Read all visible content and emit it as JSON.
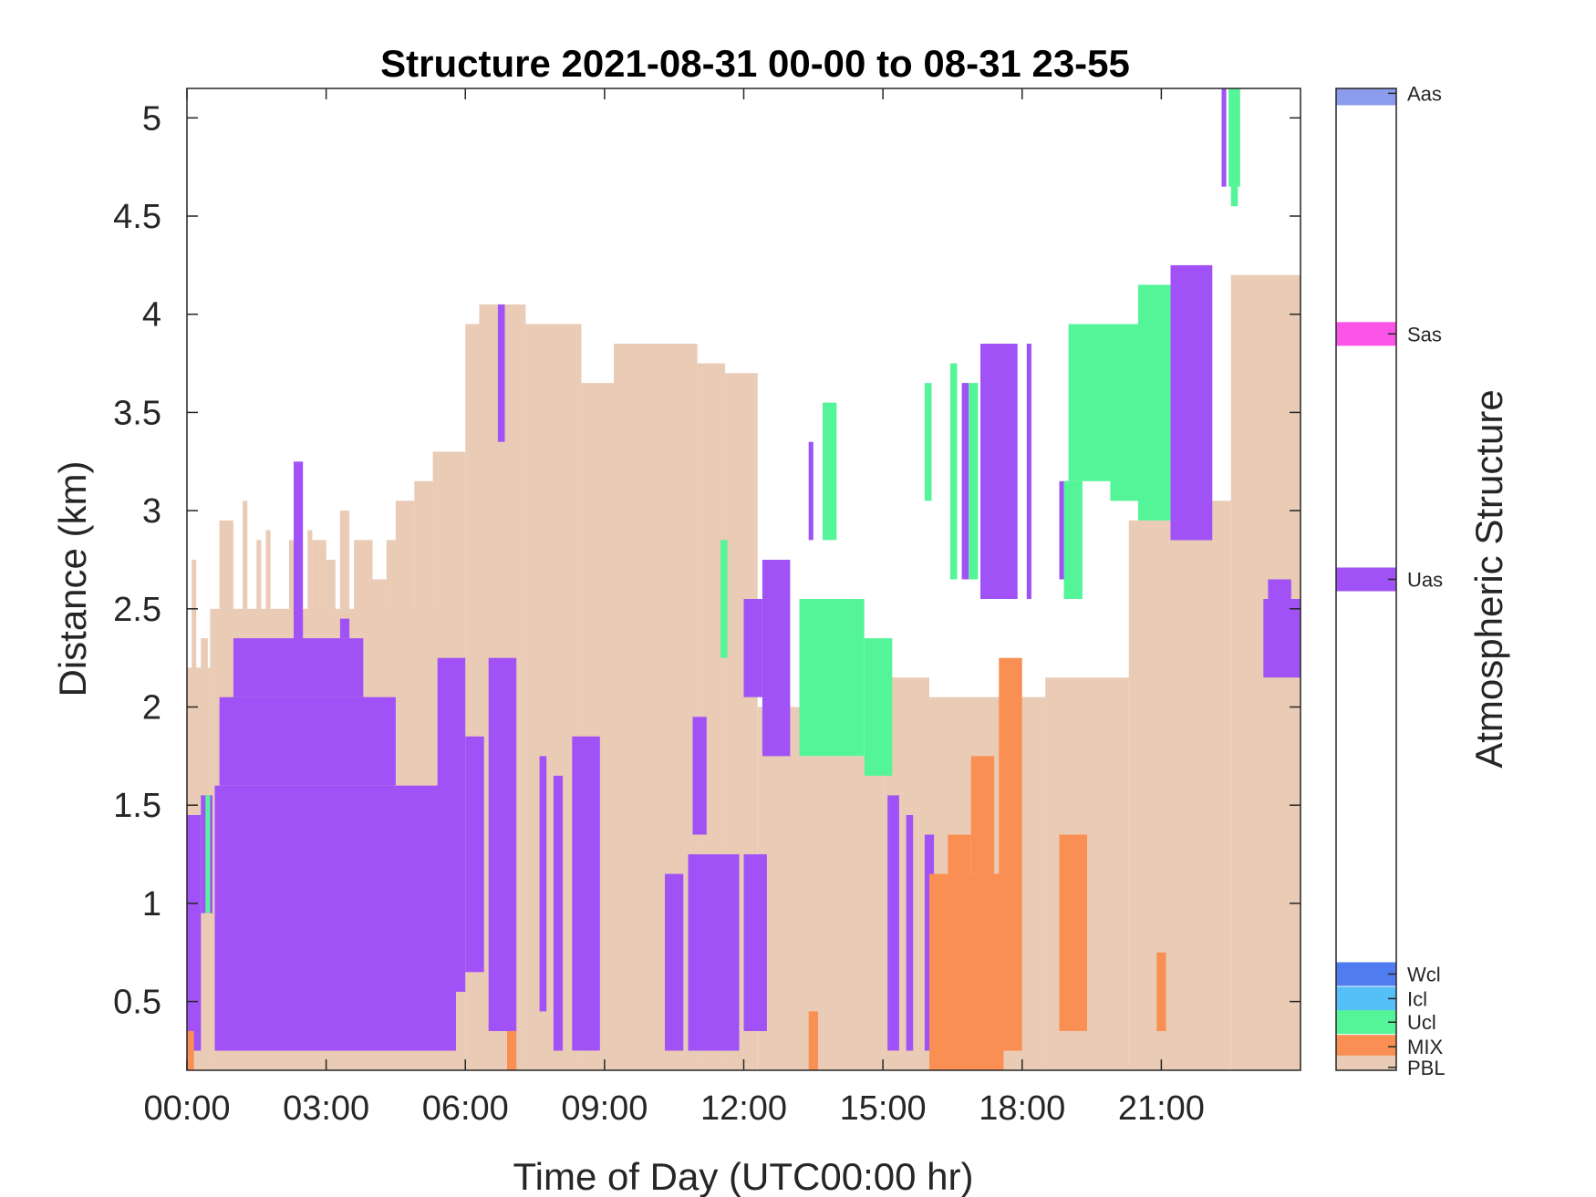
{
  "chart_data": {
    "type": "heatmap",
    "title": "Structure 2021-08-31 00-00 to 08-31 23-55",
    "xlabel": "Time of Day (UTC00:00 hr)",
    "ylabel": "Distance (km)",
    "colorbar_label": "Atmospheric Structure",
    "xlim": [
      0,
      24
    ],
    "ylim": [
      0.15,
      5.15
    ],
    "x_ticks": [
      {
        "value": 0,
        "label": "00:00"
      },
      {
        "value": 3,
        "label": "03:00"
      },
      {
        "value": 6,
        "label": "06:00"
      },
      {
        "value": 9,
        "label": "09:00"
      },
      {
        "value": 12,
        "label": "12:00"
      },
      {
        "value": 15,
        "label": "15:00"
      },
      {
        "value": 18,
        "label": "18:00"
      },
      {
        "value": 21,
        "label": "21:00"
      }
    ],
    "y_ticks": [
      {
        "value": 0.5,
        "label": "0.5"
      },
      {
        "value": 1,
        "label": "1"
      },
      {
        "value": 1.5,
        "label": "1.5"
      },
      {
        "value": 2,
        "label": "2"
      },
      {
        "value": 2.5,
        "label": "2.5"
      },
      {
        "value": 3,
        "label": "3"
      },
      {
        "value": 3.5,
        "label": "3.5"
      },
      {
        "value": 4,
        "label": "4"
      },
      {
        "value": 4.5,
        "label": "4.5"
      },
      {
        "value": 5,
        "label": "5"
      }
    ],
    "classes": [
      {
        "name": "PBL",
        "color": "#EACBB5"
      },
      {
        "name": "MIX",
        "color": "#F98F52"
      },
      {
        "name": "Ucl",
        "color": "#54F598"
      },
      {
        "name": "Icl",
        "color": "#55BFF7"
      },
      {
        "name": "Wcl",
        "color": "#4F7DF0"
      },
      {
        "name": "Uas",
        "color": "#A052F7"
      },
      {
        "name": "Sas",
        "color": "#FA55E7"
      },
      {
        "name": "Aas",
        "color": "#8C9CEC"
      }
    ],
    "colorbar_entries": [
      {
        "name": "Aas",
        "color": "#8C9CEC",
        "level": 0.995
      },
      {
        "name": "Sas",
        "color": "#FA55E7",
        "level": 0.75
      },
      {
        "name": "Uas",
        "color": "#A052F7",
        "level": 0.5
      },
      {
        "name": "Wcl",
        "color": "#4F7DF0",
        "level": 0.098
      },
      {
        "name": "Icl",
        "color": "#55BFF7",
        "level": 0.073
      },
      {
        "name": "Ucl",
        "color": "#54F598",
        "level": 0.049
      },
      {
        "name": "MIX",
        "color": "#F98F52",
        "level": 0.024
      },
      {
        "name": "PBL",
        "color": "#EACBB5",
        "level": 0.003
      }
    ],
    "regions": [
      {
        "class": "PBL",
        "x0": 0.0,
        "x1": 0.5,
        "y0": 0.15,
        "y1": 2.2
      },
      {
        "class": "PBL",
        "x0": 0.1,
        "x1": 0.2,
        "y0": 0.15,
        "y1": 2.75
      },
      {
        "class": "PBL",
        "x0": 0.3,
        "x1": 0.45,
        "y0": 0.15,
        "y1": 2.35
      },
      {
        "class": "PBL",
        "x0": 0.5,
        "x1": 6.0,
        "y0": 0.15,
        "y1": 2.5
      },
      {
        "class": "PBL",
        "x0": 0.7,
        "x1": 1.0,
        "y0": 0.15,
        "y1": 2.95
      },
      {
        "class": "PBL",
        "x0": 1.2,
        "x1": 1.3,
        "y0": 0.15,
        "y1": 3.05
      },
      {
        "class": "PBL",
        "x0": 1.5,
        "x1": 1.6,
        "y0": 0.15,
        "y1": 2.85
      },
      {
        "class": "PBL",
        "x0": 1.7,
        "x1": 1.8,
        "y0": 0.15,
        "y1": 2.9
      },
      {
        "class": "PBL",
        "x0": 2.2,
        "x1": 2.4,
        "y0": 0.15,
        "y1": 2.85
      },
      {
        "class": "PBL",
        "x0": 2.6,
        "x1": 2.7,
        "y0": 0.15,
        "y1": 2.9
      },
      {
        "class": "PBL",
        "x0": 2.7,
        "x1": 3.0,
        "y0": 0.15,
        "y1": 2.85
      },
      {
        "class": "PBL",
        "x0": 3.0,
        "x1": 3.2,
        "y0": 0.15,
        "y1": 2.75
      },
      {
        "class": "PBL",
        "x0": 3.3,
        "x1": 3.5,
        "y0": 0.15,
        "y1": 3.0
      },
      {
        "class": "PBL",
        "x0": 3.6,
        "x1": 4.0,
        "y0": 0.15,
        "y1": 2.85
      },
      {
        "class": "PBL",
        "x0": 4.0,
        "x1": 4.3,
        "y0": 0.15,
        "y1": 2.65
      },
      {
        "class": "PBL",
        "x0": 4.3,
        "x1": 4.5,
        "y0": 0.15,
        "y1": 2.85
      },
      {
        "class": "PBL",
        "x0": 4.5,
        "x1": 4.9,
        "y0": 0.15,
        "y1": 3.05
      },
      {
        "class": "PBL",
        "x0": 4.9,
        "x1": 5.3,
        "y0": 0.15,
        "y1": 3.15
      },
      {
        "class": "PBL",
        "x0": 5.3,
        "x1": 6.0,
        "y0": 0.15,
        "y1": 3.3
      },
      {
        "class": "PBL",
        "x0": 6.0,
        "x1": 6.3,
        "y0": 0.15,
        "y1": 3.95
      },
      {
        "class": "PBL",
        "x0": 6.3,
        "x1": 7.3,
        "y0": 0.15,
        "y1": 4.05
      },
      {
        "class": "PBL",
        "x0": 7.3,
        "x1": 8.5,
        "y0": 0.15,
        "y1": 3.95
      },
      {
        "class": "PBL",
        "x0": 8.5,
        "x1": 9.2,
        "y0": 0.15,
        "y1": 3.65
      },
      {
        "class": "PBL",
        "x0": 9.2,
        "x1": 11.0,
        "y0": 0.15,
        "y1": 3.85
      },
      {
        "class": "PBL",
        "x0": 11.0,
        "x1": 11.6,
        "y0": 0.15,
        "y1": 3.75
      },
      {
        "class": "PBL",
        "x0": 11.6,
        "x1": 12.3,
        "y0": 0.15,
        "y1": 3.7
      },
      {
        "class": "PBL",
        "x0": 12.3,
        "x1": 13.2,
        "y0": 0.15,
        "y1": 2.0
      },
      {
        "class": "PBL",
        "x0": 13.2,
        "x1": 15.0,
        "y0": 0.15,
        "y1": 1.75
      },
      {
        "class": "PBL",
        "x0": 15.0,
        "x1": 16.0,
        "y0": 0.15,
        "y1": 2.15
      },
      {
        "class": "PBL",
        "x0": 16.0,
        "x1": 18.5,
        "y0": 0.15,
        "y1": 2.05
      },
      {
        "class": "PBL",
        "x0": 18.5,
        "x1": 20.3,
        "y0": 0.15,
        "y1": 2.15
      },
      {
        "class": "PBL",
        "x0": 20.3,
        "x1": 21.2,
        "y0": 0.15,
        "y1": 2.95
      },
      {
        "class": "PBL",
        "x0": 21.2,
        "x1": 22.5,
        "y0": 0.15,
        "y1": 3.05
      },
      {
        "class": "PBL",
        "x0": 22.5,
        "x1": 24.0,
        "y0": 0.15,
        "y1": 4.2
      },
      {
        "class": "Uas",
        "x0": 0.0,
        "x1": 0.3,
        "y0": 0.25,
        "y1": 1.45
      },
      {
        "class": "Uas",
        "x0": 0.3,
        "x1": 0.55,
        "y0": 0.95,
        "y1": 1.55
      },
      {
        "class": "Uas",
        "x0": 0.6,
        "x1": 5.8,
        "y0": 0.25,
        "y1": 1.6
      },
      {
        "class": "Uas",
        "x0": 0.7,
        "x1": 4.5,
        "y0": 1.6,
        "y1": 2.05
      },
      {
        "class": "Uas",
        "x0": 1.0,
        "x1": 3.8,
        "y0": 2.05,
        "y1": 2.35
      },
      {
        "class": "Uas",
        "x0": 2.3,
        "x1": 2.5,
        "y0": 2.35,
        "y1": 3.25
      },
      {
        "class": "Uas",
        "x0": 3.3,
        "x1": 3.5,
        "y0": 2.35,
        "y1": 2.45
      },
      {
        "class": "Uas",
        "x0": 5.4,
        "x1": 6.0,
        "y0": 0.55,
        "y1": 2.25
      },
      {
        "class": "Uas",
        "x0": 6.0,
        "x1": 6.4,
        "y0": 0.65,
        "y1": 1.85
      },
      {
        "class": "Uas",
        "x0": 6.5,
        "x1": 7.1,
        "y0": 0.35,
        "y1": 2.25
      },
      {
        "class": "Uas",
        "x0": 6.7,
        "x1": 6.85,
        "y0": 3.35,
        "y1": 4.05
      },
      {
        "class": "Uas",
        "x0": 7.6,
        "x1": 7.75,
        "y0": 0.45,
        "y1": 1.75
      },
      {
        "class": "Uas",
        "x0": 7.9,
        "x1": 8.1,
        "y0": 0.25,
        "y1": 1.65
      },
      {
        "class": "Uas",
        "x0": 8.3,
        "x1": 8.9,
        "y0": 0.25,
        "y1": 1.85
      },
      {
        "class": "Uas",
        "x0": 10.3,
        "x1": 10.7,
        "y0": 0.25,
        "y1": 1.15
      },
      {
        "class": "Uas",
        "x0": 10.8,
        "x1": 11.9,
        "y0": 0.25,
        "y1": 1.25
      },
      {
        "class": "Uas",
        "x0": 10.9,
        "x1": 11.2,
        "y0": 1.35,
        "y1": 1.95
      },
      {
        "class": "Uas",
        "x0": 12.0,
        "x1": 12.5,
        "y0": 0.35,
        "y1": 1.25
      },
      {
        "class": "Uas",
        "x0": 12.0,
        "x1": 12.4,
        "y0": 2.05,
        "y1": 2.55
      },
      {
        "class": "Uas",
        "x0": 12.4,
        "x1": 13.0,
        "y0": 1.75,
        "y1": 2.75
      },
      {
        "class": "Uas",
        "x0": 13.4,
        "x1": 13.5,
        "y0": 2.85,
        "y1": 3.35
      },
      {
        "class": "Uas",
        "x0": 15.1,
        "x1": 15.35,
        "y0": 0.25,
        "y1": 1.55
      },
      {
        "class": "Uas",
        "x0": 15.5,
        "x1": 15.65,
        "y0": 0.25,
        "y1": 1.45
      },
      {
        "class": "Uas",
        "x0": 15.9,
        "x1": 16.1,
        "y0": 0.25,
        "y1": 1.35
      },
      {
        "class": "Uas",
        "x0": 16.7,
        "x1": 16.85,
        "y0": 2.65,
        "y1": 3.65
      },
      {
        "class": "Uas",
        "x0": 17.1,
        "x1": 17.9,
        "y0": 2.55,
        "y1": 3.85
      },
      {
        "class": "Uas",
        "x0": 18.1,
        "x1": 18.2,
        "y0": 2.55,
        "y1": 3.85
      },
      {
        "class": "Uas",
        "x0": 18.8,
        "x1": 19.0,
        "y0": 2.65,
        "y1": 3.15
      },
      {
        "class": "Uas",
        "x0": 21.2,
        "x1": 22.1,
        "y0": 2.85,
        "y1": 4.25
      },
      {
        "class": "Uas",
        "x0": 22.3,
        "x1": 22.4,
        "y0": 4.65,
        "y1": 5.15
      },
      {
        "class": "Uas",
        "x0": 23.2,
        "x1": 24.0,
        "y0": 2.15,
        "y1": 2.55
      },
      {
        "class": "Uas",
        "x0": 23.3,
        "x1": 23.8,
        "y0": 2.55,
        "y1": 2.65
      },
      {
        "class": "Ucl",
        "x0": 0.4,
        "x1": 0.5,
        "y0": 0.95,
        "y1": 1.55
      },
      {
        "class": "Ucl",
        "x0": 11.5,
        "x1": 11.65,
        "y0": 2.25,
        "y1": 2.85
      },
      {
        "class": "Ucl",
        "x0": 13.2,
        "x1": 14.6,
        "y0": 1.75,
        "y1": 2.55
      },
      {
        "class": "Ucl",
        "x0": 14.6,
        "x1": 15.2,
        "y0": 1.65,
        "y1": 2.35
      },
      {
        "class": "Ucl",
        "x0": 13.7,
        "x1": 14.0,
        "y0": 2.85,
        "y1": 3.55
      },
      {
        "class": "Ucl",
        "x0": 15.9,
        "x1": 16.05,
        "y0": 3.05,
        "y1": 3.65
      },
      {
        "class": "Ucl",
        "x0": 16.45,
        "x1": 16.6,
        "y0": 2.65,
        "y1": 3.75
      },
      {
        "class": "Ucl",
        "x0": 16.85,
        "x1": 17.05,
        "y0": 2.65,
        "y1": 3.65
      },
      {
        "class": "Ucl",
        "x0": 18.9,
        "x1": 19.3,
        "y0": 2.55,
        "y1": 3.15
      },
      {
        "class": "Ucl",
        "x0": 19.0,
        "x1": 21.2,
        "y0": 3.15,
        "y1": 3.95
      },
      {
        "class": "Ucl",
        "x0": 19.9,
        "x1": 21.2,
        "y0": 3.05,
        "y1": 3.25
      },
      {
        "class": "Ucl",
        "x0": 20.5,
        "x1": 21.2,
        "y0": 2.95,
        "y1": 4.15
      },
      {
        "class": "Ucl",
        "x0": 22.45,
        "x1": 22.7,
        "y0": 4.65,
        "y1": 5.15
      },
      {
        "class": "Ucl",
        "x0": 22.5,
        "x1": 22.65,
        "y0": 4.55,
        "y1": 4.7
      },
      {
        "class": "MIX",
        "x0": 0.0,
        "x1": 0.15,
        "y0": 0.15,
        "y1": 0.35
      },
      {
        "class": "MIX",
        "x0": 6.9,
        "x1": 7.1,
        "y0": 0.15,
        "y1": 0.35
      },
      {
        "class": "MIX",
        "x0": 13.4,
        "x1": 13.6,
        "y0": 0.15,
        "y1": 0.45
      },
      {
        "class": "MIX",
        "x0": 16.0,
        "x1": 17.6,
        "y0": 0.15,
        "y1": 1.15
      },
      {
        "class": "MIX",
        "x0": 16.4,
        "x1": 16.9,
        "y0": 1.15,
        "y1": 1.35
      },
      {
        "class": "MIX",
        "x0": 16.9,
        "x1": 17.4,
        "y0": 1.15,
        "y1": 1.75
      },
      {
        "class": "MIX",
        "x0": 17.5,
        "x1": 18.0,
        "y0": 0.25,
        "y1": 2.25
      },
      {
        "class": "MIX",
        "x0": 18.8,
        "x1": 19.4,
        "y0": 0.35,
        "y1": 1.35
      },
      {
        "class": "MIX",
        "x0": 20.9,
        "x1": 21.1,
        "y0": 0.35,
        "y1": 0.75
      }
    ]
  }
}
